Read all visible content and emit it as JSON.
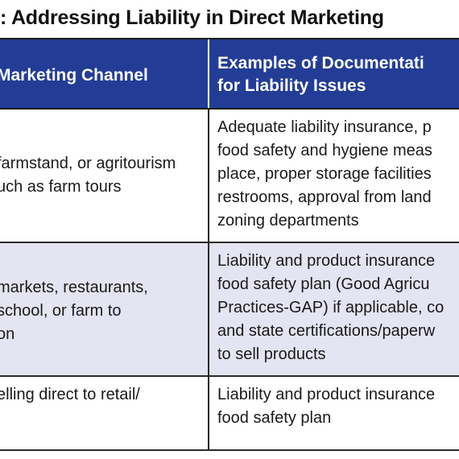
{
  "title": ": Addressing Liability in Direct Marketing",
  "table": {
    "headers": {
      "channel": "Marketing Channel",
      "examples_line1": "Examples of Documentati",
      "examples_line2": "for Liability Issues"
    },
    "rows": [
      {
        "channel": [
          "farmstand, or agritourism",
          "uch as farm tours"
        ],
        "examples": [
          "Adequate liability insurance, p",
          "food safety and hygiene meas",
          "place, proper storage facilities",
          "restrooms, approval from land",
          "zoning departments"
        ]
      },
      {
        "channel": [
          " markets, restaurants,",
          "school, or farm to",
          "on"
        ],
        "examples": [
          "Liability and product insurance",
          "food safety plan (Good Agricu",
          "Practices-GAP) if applicable, co",
          "and state certifications/paperw",
          "to sell products"
        ]
      },
      {
        "channel": [
          "elling direct to retail/"
        ],
        "examples": [
          "Liability and product insurance",
          "food safety plan"
        ]
      }
    ]
  },
  "colors": {
    "header_bg": "#233d96",
    "header_text": "#ffffff",
    "alt_row_bg": "#e4e4f2",
    "border": "#2a2a2a"
  }
}
